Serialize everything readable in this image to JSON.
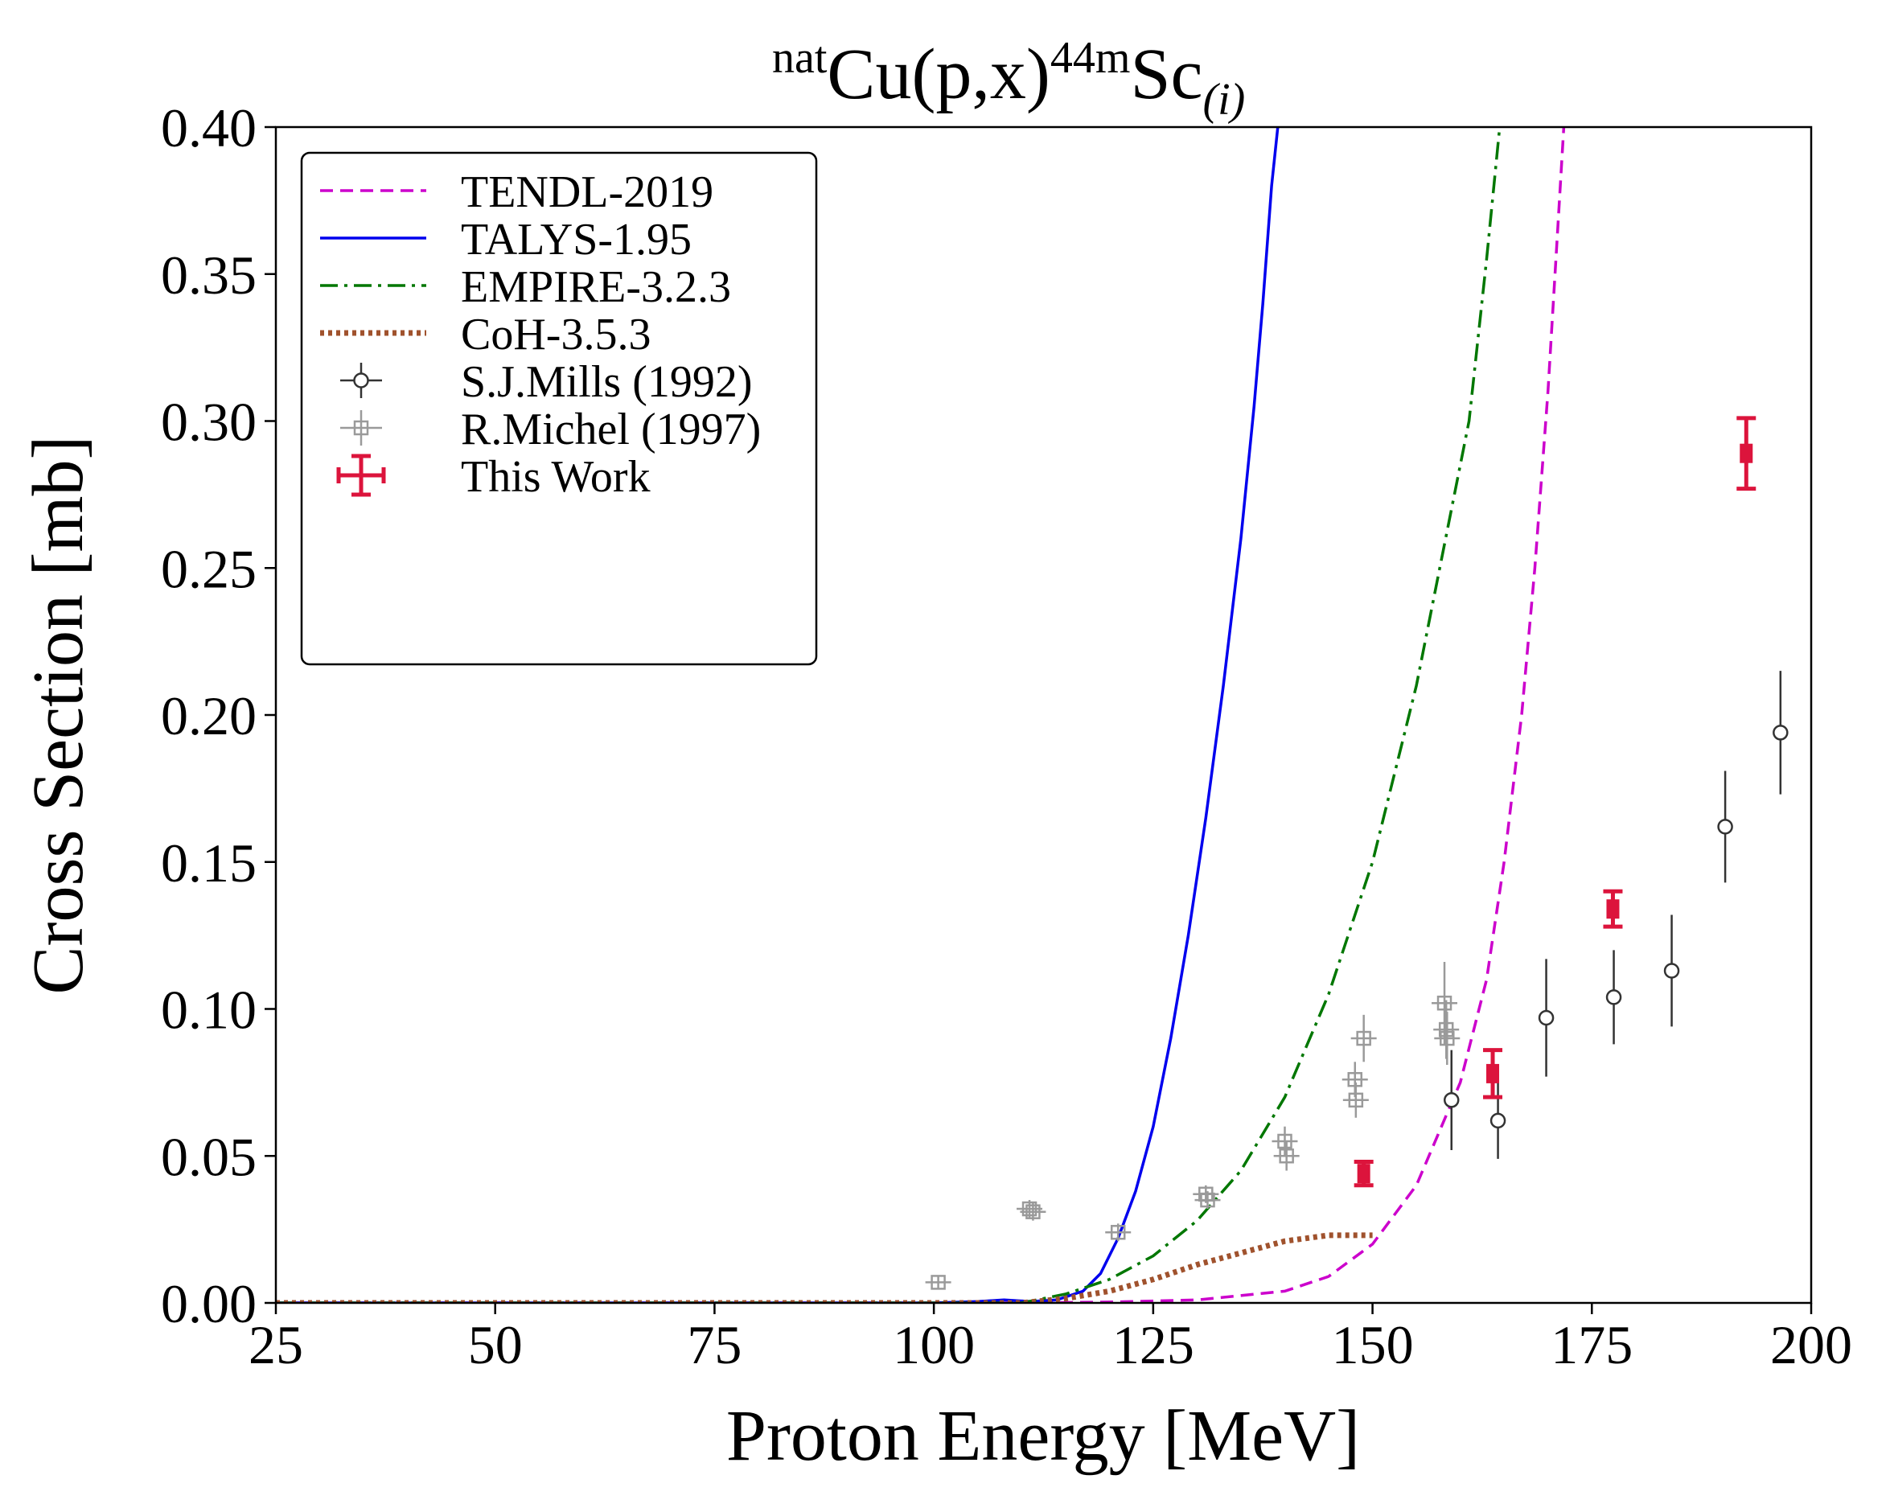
{
  "chart_data": {
    "type": "scatter",
    "title_parts": {
      "pre_sup": "nat",
      "main": "Cu(p,x)",
      "sup": "44m",
      "element": "Sc",
      "sub": "(i)"
    },
    "xlabel": "Proton Energy [MeV]",
    "ylabel": "Cross Section [mb]",
    "xlim": [
      25,
      200
    ],
    "ylim": [
      0,
      0.4
    ],
    "xticks": [
      "25",
      "50",
      "75",
      "100",
      "125",
      "150",
      "175",
      "200"
    ],
    "yticks": [
      "0.00",
      "0.05",
      "0.10",
      "0.15",
      "0.20",
      "0.25",
      "0.30",
      "0.35",
      "0.40"
    ],
    "legend_position": "upper-left",
    "series": [
      {
        "name": "TENDL-2019",
        "kind": "line",
        "color": "#cc00cc",
        "style": "dashed",
        "points": [
          [
            25,
            0
          ],
          [
            110,
            0
          ],
          [
            120,
            0.0003
          ],
          [
            130,
            0.001
          ],
          [
            140,
            0.004
          ],
          [
            145,
            0.009
          ],
          [
            150,
            0.02
          ],
          [
            155,
            0.04
          ],
          [
            160,
            0.075
          ],
          [
            163,
            0.11
          ],
          [
            165,
            0.15
          ],
          [
            167,
            0.2
          ],
          [
            168.5,
            0.25
          ],
          [
            170,
            0.31
          ],
          [
            171,
            0.36
          ],
          [
            171.8,
            0.4
          ]
        ]
      },
      {
        "name": "TALYS-1.95",
        "kind": "line",
        "color": "#0000ee",
        "style": "solid",
        "points": [
          [
            25,
            0
          ],
          [
            100,
            0
          ],
          [
            105,
            0.0005
          ],
          [
            108,
            0.001
          ],
          [
            111,
            0.0005
          ],
          [
            114,
            0.001
          ],
          [
            117,
            0.004
          ],
          [
            119,
            0.01
          ],
          [
            121,
            0.022
          ],
          [
            123,
            0.038
          ],
          [
            125,
            0.06
          ],
          [
            127,
            0.09
          ],
          [
            129,
            0.125
          ],
          [
            131,
            0.165
          ],
          [
            133,
            0.21
          ],
          [
            135,
            0.26
          ],
          [
            136.5,
            0.305
          ],
          [
            137.5,
            0.34
          ],
          [
            138.5,
            0.38
          ],
          [
            139.2,
            0.4
          ]
        ]
      },
      {
        "name": "EMPIRE-3.2.3",
        "kind": "line",
        "color": "#007700",
        "style": "dashdot",
        "points": [
          [
            25,
            0
          ],
          [
            110,
            0
          ],
          [
            115,
            0.003
          ],
          [
            120,
            0.008
          ],
          [
            125,
            0.016
          ],
          [
            130,
            0.028
          ],
          [
            135,
            0.045
          ],
          [
            140,
            0.07
          ],
          [
            145,
            0.105
          ],
          [
            150,
            0.15
          ],
          [
            155,
            0.21
          ],
          [
            158,
            0.255
          ],
          [
            161,
            0.3
          ],
          [
            163,
            0.355
          ],
          [
            164,
            0.385
          ],
          [
            164.5,
            0.4
          ]
        ]
      },
      {
        "name": "CoH-3.5.3",
        "kind": "line",
        "color": "#a0522d",
        "style": "dotted",
        "points": [
          [
            25,
            0
          ],
          [
            110,
            0
          ],
          [
            115,
            0.0015
          ],
          [
            120,
            0.004
          ],
          [
            125,
            0.008
          ],
          [
            130,
            0.013
          ],
          [
            135,
            0.017
          ],
          [
            140,
            0.021
          ],
          [
            145,
            0.023
          ],
          [
            150,
            0.023
          ]
        ]
      },
      {
        "name": "S.J.Mills (1992)",
        "kind": "points",
        "marker": "circle",
        "color": "#333333",
        "points": [
          [
            159,
            0.069,
            0.017
          ],
          [
            164.3,
            0.062,
            0.013
          ],
          [
            169.8,
            0.097,
            0.02
          ],
          [
            177.5,
            0.104,
            0.016
          ],
          [
            184.1,
            0.113,
            0.019
          ],
          [
            190.2,
            0.162,
            0.019
          ],
          [
            196.5,
            0.194,
            0.021
          ]
        ]
      },
      {
        "name": "R.Michel (1997)",
        "kind": "points",
        "marker": "square",
        "color": "#9a9a9a",
        "points": [
          [
            100.5,
            0.007,
            0.002
          ],
          [
            110.9,
            0.032,
            0.003
          ],
          [
            111.3,
            0.031,
            0.003
          ],
          [
            121,
            0.024,
            0.003
          ],
          [
            131,
            0.037,
            0.003
          ],
          [
            131.2,
            0.035,
            0.003
          ],
          [
            140,
            0.055,
            0.005
          ],
          [
            140.2,
            0.05,
            0.005
          ],
          [
            148,
            0.076,
            0.006
          ],
          [
            148.1,
            0.069,
            0.006
          ],
          [
            149,
            0.09,
            0.008
          ],
          [
            158.2,
            0.102,
            0.014
          ],
          [
            158.4,
            0.093,
            0.01
          ],
          [
            158.5,
            0.09,
            0.009
          ]
        ]
      },
      {
        "name": "This Work",
        "kind": "points",
        "marker": "square",
        "color": "#dc143c",
        "points": [
          [
            149,
            0.044,
            0.004
          ],
          [
            163.7,
            0.078,
            0.008
          ],
          [
            177.4,
            0.134,
            0.006
          ],
          [
            192.6,
            0.289,
            0.012
          ]
        ]
      }
    ]
  }
}
